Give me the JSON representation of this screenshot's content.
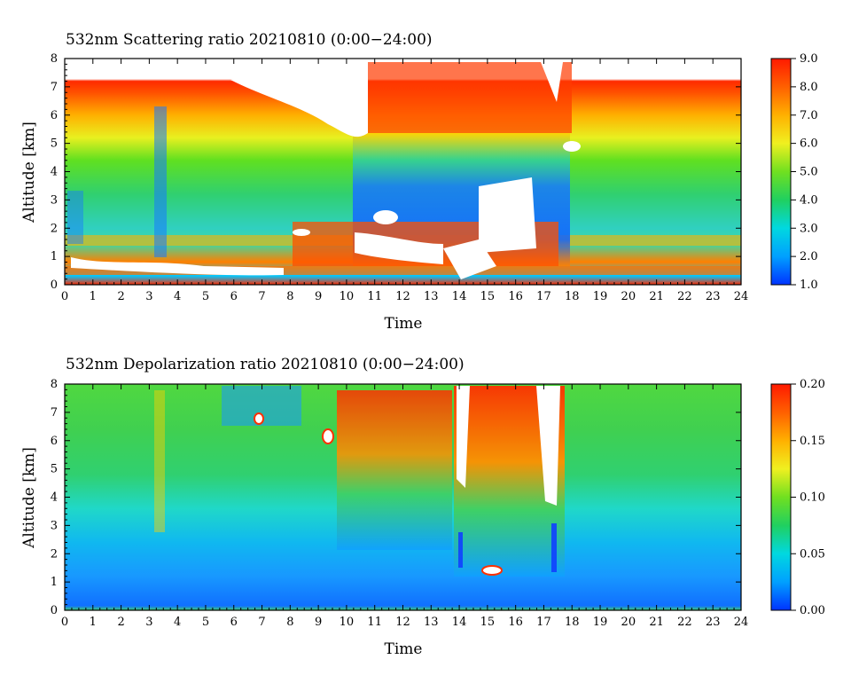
{
  "chart_data": [
    {
      "type": "heatmap",
      "title": "532nm Scattering ratio  20210810 (0:00−24:00)",
      "xlabel": "Time",
      "ylabel": "Altitude [km]",
      "xlim": [
        0,
        24
      ],
      "ylim": [
        0,
        8
      ],
      "xticks": [
        "0",
        "1",
        "2",
        "3",
        "4",
        "5",
        "6",
        "7",
        "8",
        "9",
        "10",
        "11",
        "12",
        "13",
        "14",
        "15",
        "16",
        "17",
        "18",
        "19",
        "20",
        "21",
        "22",
        "23",
        "24"
      ],
      "yticks": [
        "0",
        "1",
        "2",
        "3",
        "4",
        "5",
        "6",
        "7",
        "8"
      ],
      "colorbar": {
        "range": [
          1.0,
          9.0
        ],
        "ticks": [
          "1.0",
          "2.0",
          "3.0",
          "4.0",
          "5.0",
          "6.0",
          "7.0",
          "8.0",
          "9.0"
        ],
        "colors": [
          "#0033ff",
          "#00a0ff",
          "#00d8e0",
          "#20d060",
          "#70e020",
          "#f0f020",
          "#ffb000",
          "#ff6000",
          "#ff1a00"
        ]
      },
      "grid": false
    },
    {
      "type": "heatmap",
      "title": "532nm Depolarization ratio  20210810 (0:00−24:00)",
      "xlabel": "Time",
      "ylabel": "Altitude [km]",
      "xlim": [
        0,
        24
      ],
      "ylim": [
        0,
        8
      ],
      "xticks": [
        "0",
        "1",
        "2",
        "3",
        "4",
        "5",
        "6",
        "7",
        "8",
        "9",
        "10",
        "11",
        "12",
        "13",
        "14",
        "15",
        "16",
        "17",
        "18",
        "19",
        "20",
        "21",
        "22",
        "23",
        "24"
      ],
      "yticks": [
        "0",
        "1",
        "2",
        "3",
        "4",
        "5",
        "6",
        "7",
        "8"
      ],
      "colorbar": {
        "range": [
          0.0,
          0.2
        ],
        "ticks": [
          "0.00",
          "0.05",
          "0.10",
          "0.15",
          "0.20"
        ],
        "colors": [
          "#0033ff",
          "#00a0ff",
          "#00d8e0",
          "#20d060",
          "#70e020",
          "#f0f020",
          "#ffb000",
          "#ff6000",
          "#ff1a00"
        ]
      },
      "grid": false
    }
  ]
}
